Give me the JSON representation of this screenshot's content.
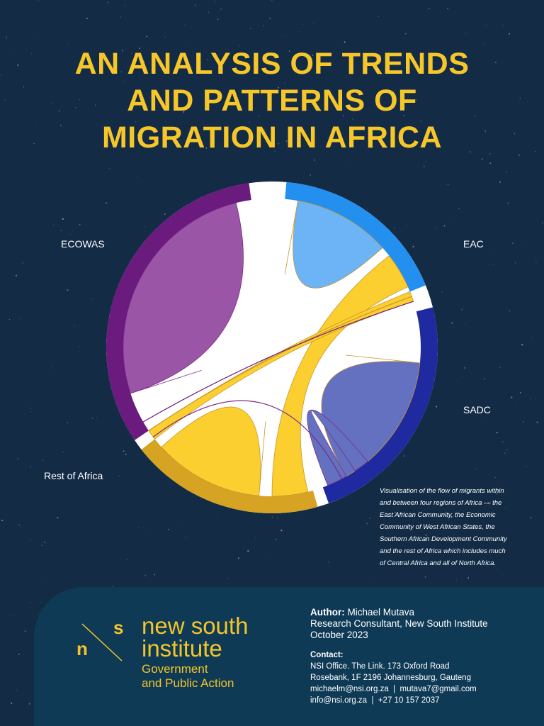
{
  "title": [
    "AN ANALYSIS OF TRENDS",
    "AND PATTERNS OF",
    "MIGRATION IN AFRICA"
  ],
  "diagram": {
    "labels": {
      "ecowas": "ECOWAS",
      "eac": "EAC",
      "sadc": "SADC",
      "rest": "Rest of Africa"
    }
  },
  "caption": [
    "Visualisation of the flow of migrants within",
    "and between four regions of Africa — the",
    "East African Community, the Economic",
    "Community of West African States, the",
    "Southern African Development Community",
    "and the rest of Africa which includes much",
    "of Central Africa and all of North Africa."
  ],
  "logo": {
    "mark_n": "n",
    "mark_s": "s",
    "name": [
      "new south",
      "institute"
    ],
    "tagline": [
      "Government",
      "and Public Action"
    ]
  },
  "author": {
    "label": "Author:",
    "name": "Michael Mutava",
    "role": "Research Consultant, New South Institute",
    "date": "October 2023"
  },
  "contact": {
    "label": "Contact:",
    "lines": [
      "NSI Office. The Link. 173 Oxford Road",
      "Rosebank, 1F 2196 Johannesburg, Gauteng",
      "michaelm@nsi.org.za  |  mutava7@gmail.com",
      "info@nsi.org.za  |  +27 10 157 2037"
    ]
  }
}
